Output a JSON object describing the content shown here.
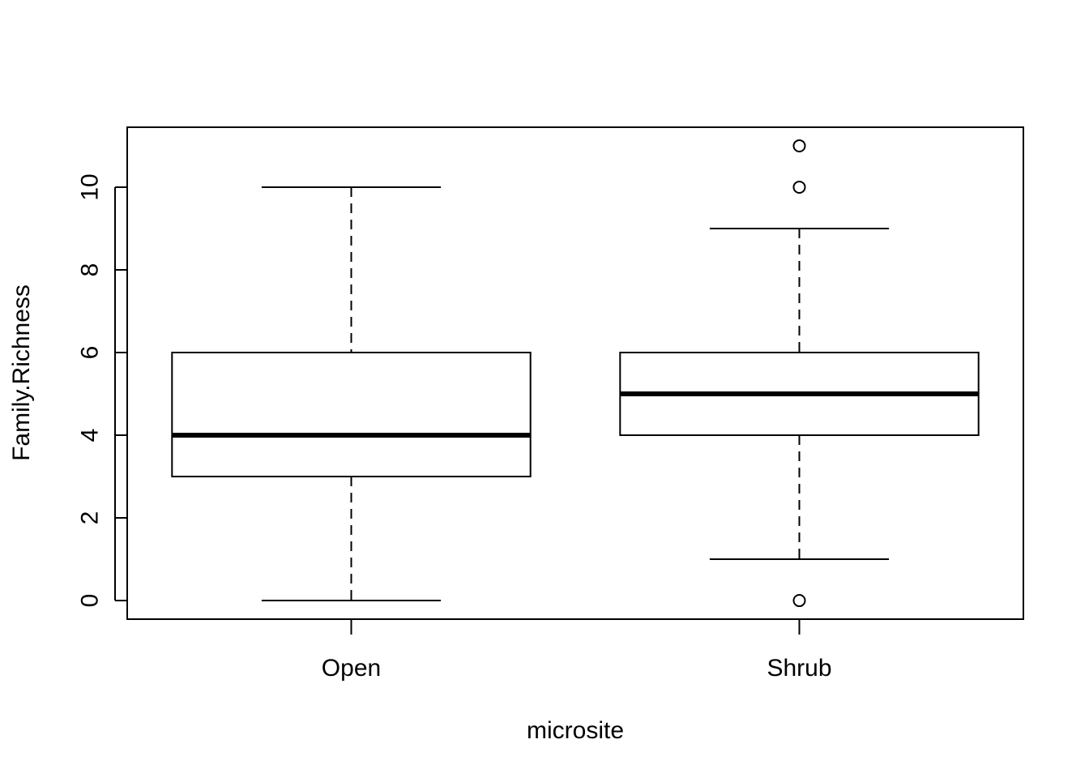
{
  "chart_data": {
    "type": "boxplot",
    "title": "",
    "xlabel": "microsite",
    "ylabel": "Family.Richness",
    "ylim": [
      -0.45,
      11.45
    ],
    "yticks": [
      0,
      2,
      4,
      6,
      8,
      10
    ],
    "ytick_labels": [
      "0",
      "2",
      "4",
      "6",
      "8",
      "10"
    ],
    "categories": [
      "Open",
      "Shrub"
    ],
    "boxes": [
      {
        "name": "Open",
        "whisker_low": 0,
        "q1": 3,
        "median": 4,
        "q3": 6,
        "whisker_high": 10,
        "outliers": []
      },
      {
        "name": "Shrub",
        "whisker_low": 1,
        "q1": 4,
        "median": 5,
        "q3": 6,
        "whisker_high": 9,
        "outliers": [
          11,
          10,
          0
        ]
      }
    ],
    "grid": false,
    "legend": false
  }
}
